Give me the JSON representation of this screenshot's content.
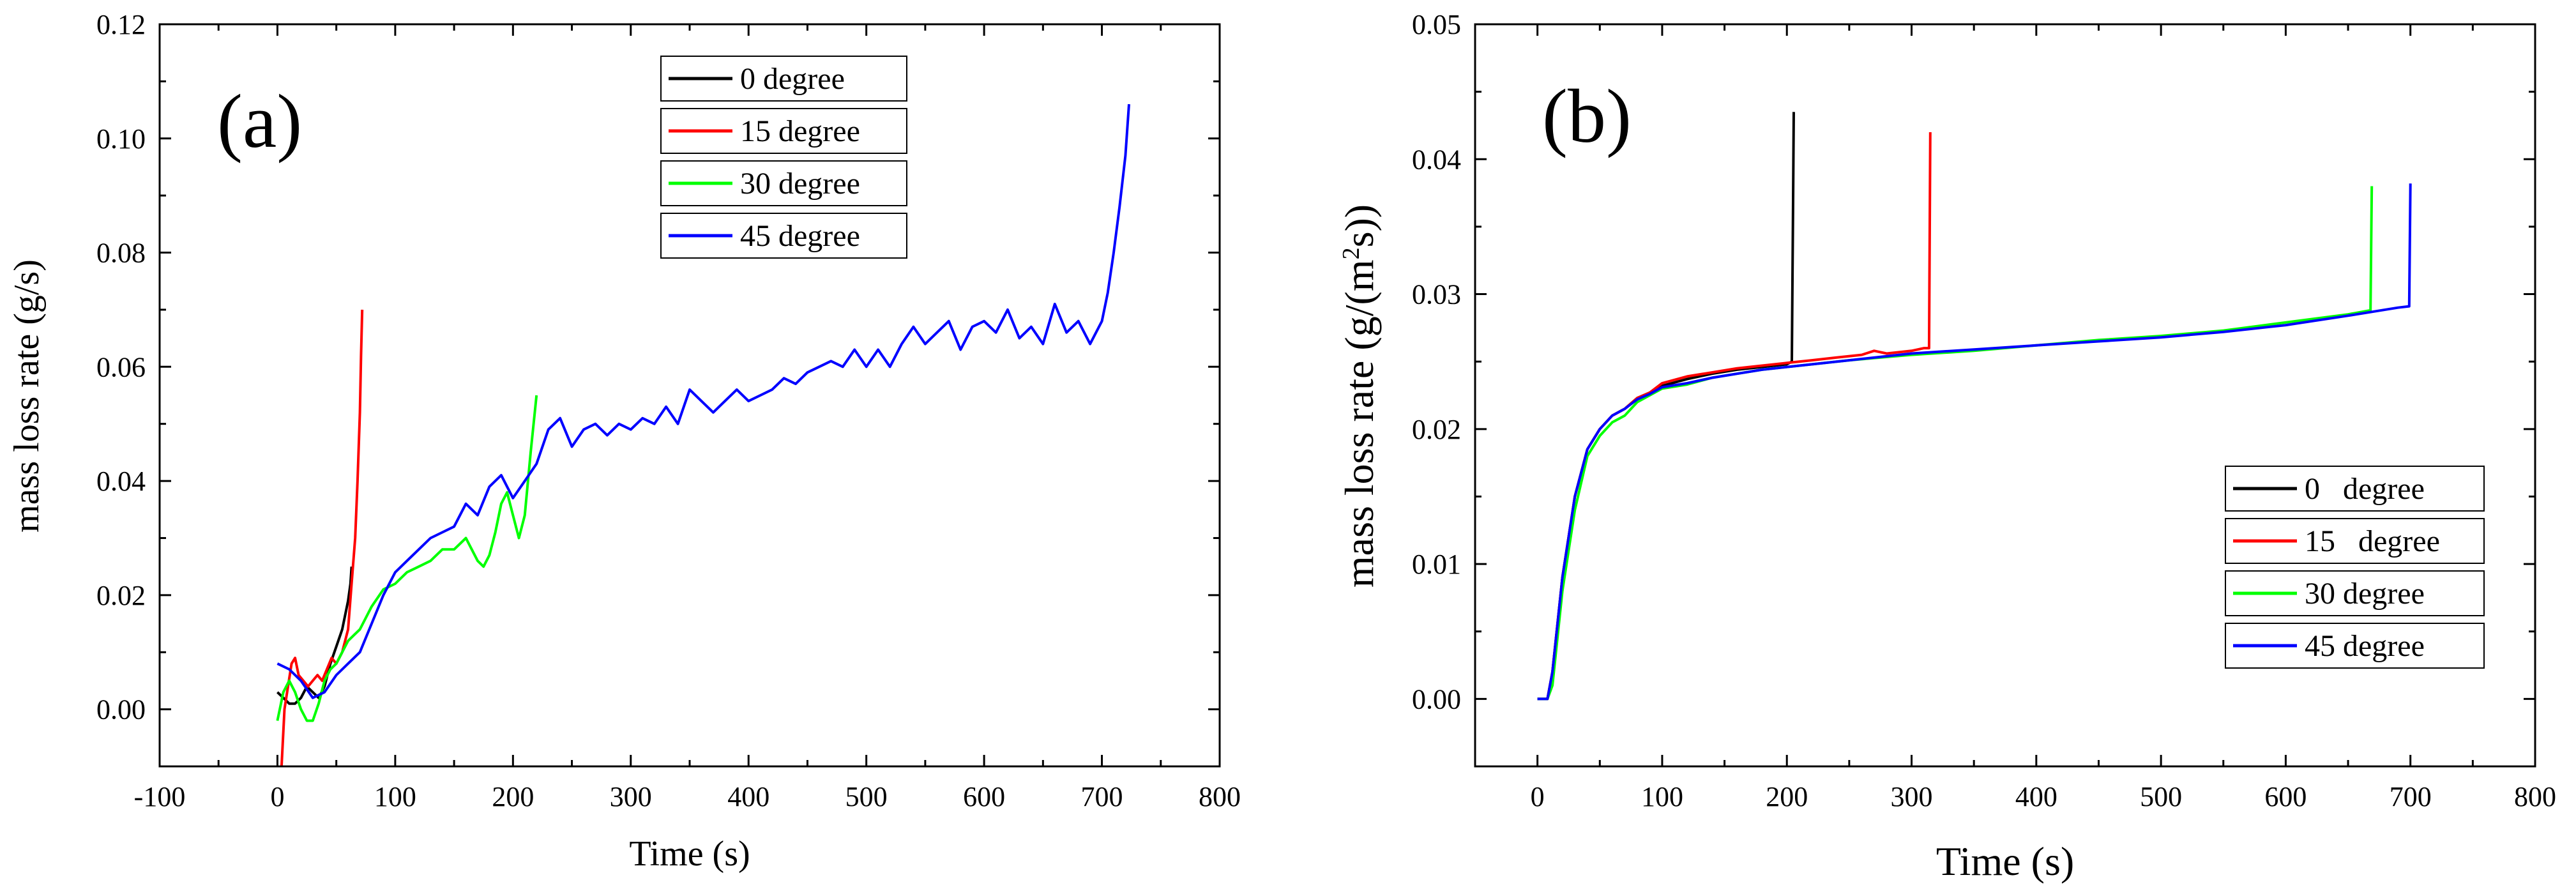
{
  "chart_data": [
    {
      "type": "line",
      "panel_label": "(a)",
      "xlabel": "Time (s)",
      "ylabel": "mass loss rate (g/s)",
      "xlim": [
        -100,
        800
      ],
      "ylim": [
        -0.01,
        0.12
      ],
      "xticks": [
        -100,
        0,
        100,
        200,
        300,
        400,
        500,
        600,
        700,
        800
      ],
      "yticks": [
        0.0,
        0.02,
        0.04,
        0.06,
        0.08,
        0.1,
        0.12
      ],
      "ytick_labels": [
        "0.00",
        "0.02",
        "0.04",
        "0.06",
        "0.08",
        "0.10",
        "0.12"
      ],
      "legend_position": "top-center",
      "series": [
        {
          "name": "0 degree",
          "color": "#000000",
          "x": [
            0,
            5,
            10,
            15,
            20,
            25,
            30,
            35,
            40,
            45,
            50,
            55,
            60,
            62,
            63
          ],
          "y": [
            0.003,
            0.002,
            0.001,
            0.001,
            0.002,
            0.004,
            0.003,
            0.002,
            0.004,
            0.008,
            0.011,
            0.014,
            0.019,
            0.022,
            0.025
          ]
        },
        {
          "name": "15 degree",
          "color": "#ff0000",
          "x": [
            3,
            6,
            9,
            12,
            15,
            18,
            22,
            26,
            30,
            34,
            38,
            42,
            46,
            50,
            55,
            60,
            63,
            66,
            68,
            70,
            71,
            72
          ],
          "y": [
            -0.012,
            0.0,
            0.004,
            0.008,
            0.009,
            0.006,
            0.005,
            0.004,
            0.005,
            0.006,
            0.005,
            0.007,
            0.009,
            0.008,
            0.01,
            0.014,
            0.022,
            0.03,
            0.04,
            0.052,
            0.062,
            0.07
          ]
        },
        {
          "name": "30 degree",
          "color": "#00ff00",
          "x": [
            0,
            5,
            10,
            15,
            20,
            25,
            30,
            35,
            40,
            45,
            50,
            55,
            60,
            65,
            70,
            80,
            90,
            100,
            110,
            120,
            130,
            140,
            150,
            160,
            165,
            170,
            175,
            180,
            185,
            190,
            195,
            200,
            205,
            210,
            215,
            220
          ],
          "y": [
            -0.002,
            0.003,
            0.005,
            0.003,
            0.0,
            -0.002,
            -0.002,
            0.001,
            0.005,
            0.007,
            0.008,
            0.01,
            0.012,
            0.013,
            0.014,
            0.018,
            0.021,
            0.022,
            0.024,
            0.025,
            0.026,
            0.028,
            0.028,
            0.03,
            0.028,
            0.026,
            0.025,
            0.027,
            0.031,
            0.036,
            0.038,
            0.034,
            0.03,
            0.034,
            0.045,
            0.055
          ]
        },
        {
          "name": "45 degree",
          "color": "#0000ff",
          "x": [
            0,
            10,
            20,
            30,
            40,
            50,
            60,
            70,
            80,
            90,
            100,
            110,
            120,
            130,
            140,
            150,
            160,
            170,
            180,
            190,
            200,
            210,
            220,
            230,
            240,
            250,
            260,
            270,
            280,
            290,
            300,
            310,
            320,
            330,
            340,
            350,
            360,
            370,
            380,
            390,
            400,
            410,
            420,
            430,
            440,
            450,
            460,
            470,
            480,
            490,
            500,
            510,
            520,
            530,
            540,
            550,
            560,
            570,
            580,
            590,
            600,
            610,
            620,
            630,
            640,
            650,
            660,
            670,
            680,
            690,
            700,
            705,
            710,
            715,
            720,
            723
          ],
          "y": [
            0.008,
            0.007,
            0.005,
            0.002,
            0.003,
            0.006,
            0.008,
            0.01,
            0.015,
            0.02,
            0.024,
            0.026,
            0.028,
            0.03,
            0.031,
            0.032,
            0.036,
            0.034,
            0.039,
            0.041,
            0.037,
            0.04,
            0.043,
            0.049,
            0.051,
            0.046,
            0.049,
            0.05,
            0.048,
            0.05,
            0.049,
            0.051,
            0.05,
            0.053,
            0.05,
            0.056,
            0.054,
            0.052,
            0.054,
            0.056,
            0.054,
            0.055,
            0.056,
            0.058,
            0.057,
            0.059,
            0.06,
            0.061,
            0.06,
            0.063,
            0.06,
            0.063,
            0.06,
            0.064,
            0.067,
            0.064,
            0.066,
            0.068,
            0.063,
            0.067,
            0.068,
            0.066,
            0.07,
            0.065,
            0.067,
            0.064,
            0.071,
            0.066,
            0.068,
            0.064,
            0.068,
            0.073,
            0.08,
            0.088,
            0.097,
            0.106
          ]
        }
      ]
    },
    {
      "type": "line",
      "panel_label": "(b)",
      "xlabel": "Time (s)",
      "ylabel_main": "mass loss rate (g/(m",
      "ylabel_sup": "2",
      "ylabel_tail": "s))",
      "xlim": [
        -50,
        800
      ],
      "ylim": [
        -0.005,
        0.05
      ],
      "xticks": [
        0,
        100,
        200,
        300,
        400,
        500,
        600,
        700,
        800
      ],
      "yticks": [
        0.0,
        0.01,
        0.02,
        0.03,
        0.04,
        0.05
      ],
      "ytick_labels": [
        "0.00",
        "0.01",
        "0.02",
        "0.03",
        "0.04",
        "0.05"
      ],
      "legend_position": "bottom-right",
      "series": [
        {
          "name": "0   degree",
          "color": "#000000",
          "x": [
            0,
            8,
            12,
            20,
            30,
            40,
            50,
            60,
            70,
            80,
            90,
            100,
            120,
            140,
            160,
            180,
            200,
            204,
            205,
            205.5
          ],
          "y": [
            0.0,
            0.0,
            0.002,
            0.009,
            0.015,
            0.0185,
            0.02,
            0.021,
            0.0215,
            0.0223,
            0.0227,
            0.0232,
            0.0237,
            0.0241,
            0.0244,
            0.0246,
            0.0248,
            0.025,
            0.037,
            0.0435
          ]
        },
        {
          "name": "15   degree",
          "color": "#ff0000",
          "x": [
            0,
            8,
            12,
            20,
            30,
            40,
            50,
            60,
            70,
            80,
            90,
            100,
            120,
            140,
            160,
            180,
            200,
            220,
            240,
            260,
            270,
            280,
            290,
            300,
            310,
            314,
            315
          ],
          "y": [
            0.0,
            0.0,
            0.002,
            0.009,
            0.015,
            0.0185,
            0.02,
            0.021,
            0.0215,
            0.0223,
            0.0227,
            0.0234,
            0.0239,
            0.0242,
            0.0245,
            0.0247,
            0.0249,
            0.0251,
            0.0253,
            0.0255,
            0.0258,
            0.0256,
            0.0257,
            0.0258,
            0.026,
            0.026,
            0.042
          ]
        },
        {
          "name": "30 degree",
          "color": "#00ff00",
          "x": [
            0,
            8,
            12,
            20,
            30,
            40,
            50,
            60,
            70,
            80,
            90,
            100,
            120,
            140,
            160,
            180,
            200,
            250,
            300,
            350,
            400,
            450,
            500,
            550,
            600,
            650,
            668,
            669
          ],
          "y": [
            0.0,
            0.0,
            0.001,
            0.008,
            0.014,
            0.018,
            0.0195,
            0.0205,
            0.021,
            0.022,
            0.0225,
            0.023,
            0.0233,
            0.0238,
            0.0241,
            0.0244,
            0.0246,
            0.0251,
            0.0255,
            0.0258,
            0.0262,
            0.0266,
            0.0269,
            0.0273,
            0.0279,
            0.0285,
            0.0288,
            0.038
          ]
        },
        {
          "name": "45 degree",
          "color": "#0000ff",
          "x": [
            0,
            8,
            12,
            20,
            30,
            40,
            50,
            60,
            70,
            80,
            90,
            100,
            120,
            140,
            160,
            180,
            200,
            250,
            300,
            350,
            400,
            450,
            500,
            550,
            600,
            650,
            690,
            699,
            700
          ],
          "y": [
            0.0,
            0.0,
            0.002,
            0.009,
            0.015,
            0.0185,
            0.02,
            0.021,
            0.0215,
            0.0222,
            0.0226,
            0.0231,
            0.0234,
            0.0238,
            0.0241,
            0.0244,
            0.0246,
            0.0251,
            0.0256,
            0.0259,
            0.0262,
            0.0265,
            0.0268,
            0.0272,
            0.0277,
            0.0284,
            0.029,
            0.0291,
            0.0382
          ]
        }
      ]
    }
  ]
}
